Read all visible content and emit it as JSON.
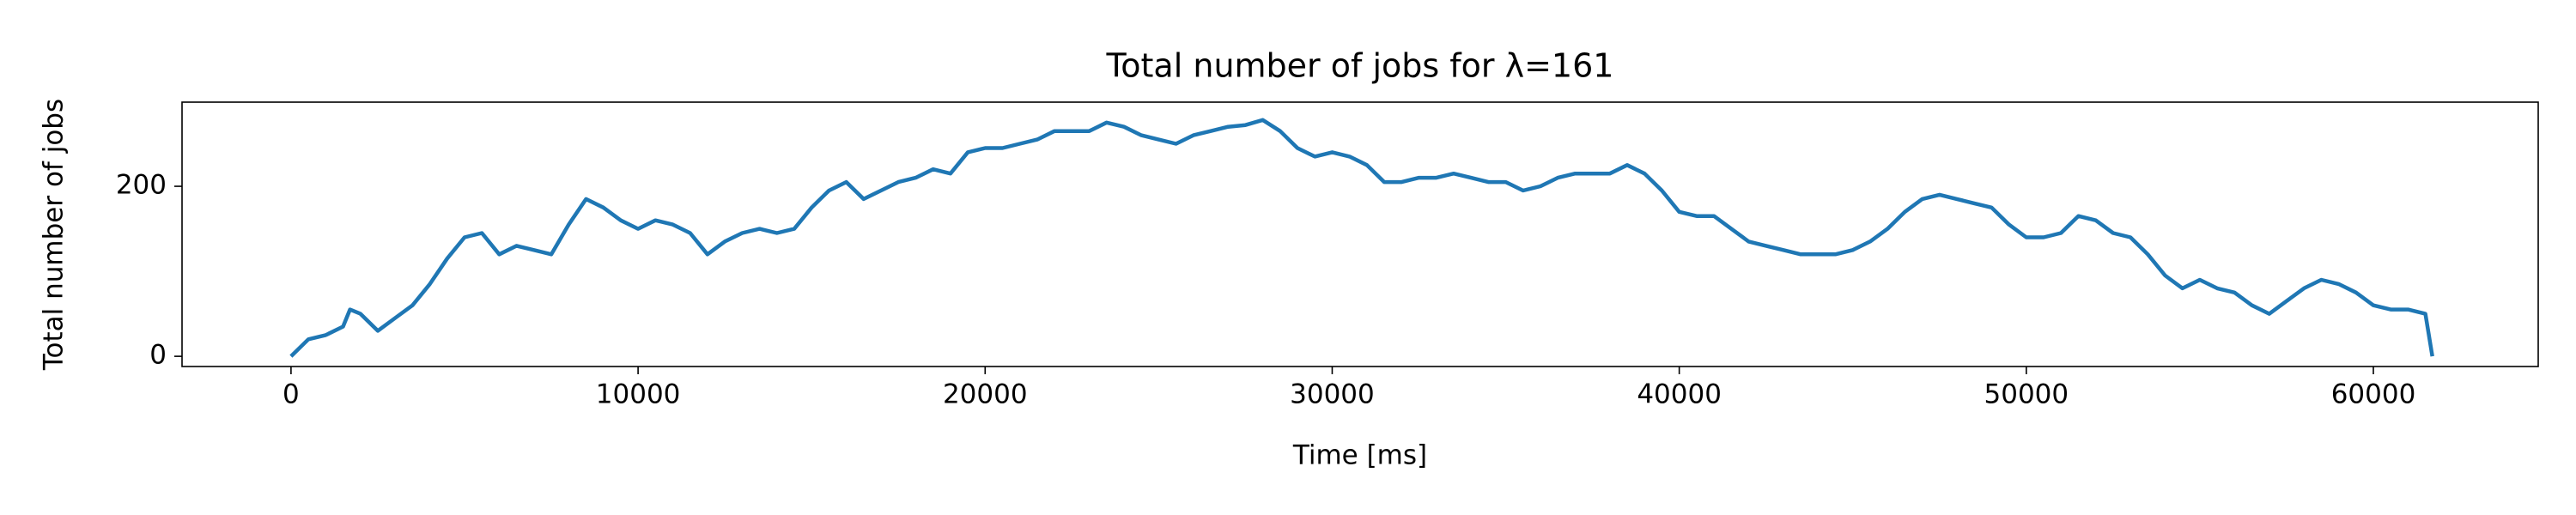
{
  "chart_data": {
    "type": "line",
    "title": "Total number of jobs for λ=161",
    "x_label": "Time [ms]",
    "y_label": "Total number of jobs",
    "color": "#1f77b4",
    "x": [
      0,
      500,
      1000,
      1500,
      1700,
      2000,
      2500,
      3000,
      3500,
      4000,
      4500,
      5000,
      5500,
      6000,
      6500,
      7000,
      7500,
      8000,
      8500,
      9000,
      9500,
      10000,
      10500,
      11000,
      11500,
      12000,
      12500,
      13000,
      13500,
      14000,
      14500,
      15000,
      15500,
      16000,
      16500,
      17000,
      17500,
      18000,
      18500,
      19000,
      19500,
      20000,
      20500,
      21000,
      21500,
      22000,
      22500,
      23000,
      23500,
      24000,
      24500,
      25000,
      25500,
      26000,
      26500,
      27000,
      27500,
      28000,
      28500,
      29000,
      29500,
      30000,
      30500,
      31000,
      31500,
      32000,
      32500,
      33000,
      33500,
      34000,
      34500,
      35000,
      35500,
      36000,
      36500,
      37000,
      37500,
      38000,
      38500,
      39000,
      39500,
      40000,
      40500,
      41000,
      41500,
      42000,
      42500,
      43000,
      43500,
      44000,
      44500,
      45000,
      45500,
      46000,
      46500,
      47000,
      47500,
      48000,
      48500,
      49000,
      49500,
      50000,
      50500,
      51000,
      51500,
      52000,
      52500,
      53000,
      53500,
      54000,
      54500,
      55000,
      55500,
      56000,
      56500,
      57000,
      57500,
      58000,
      58500,
      59000,
      59500,
      60000,
      60500,
      61000,
      61500,
      61700
    ],
    "values": [
      0,
      20,
      25,
      35,
      55,
      50,
      30,
      45,
      60,
      85,
      115,
      140,
      145,
      120,
      130,
      125,
      120,
      155,
      185,
      175,
      160,
      150,
      160,
      155,
      145,
      120,
      135,
      145,
      150,
      145,
      150,
      175,
      195,
      205,
      185,
      195,
      205,
      210,
      220,
      215,
      240,
      245,
      245,
      250,
      255,
      265,
      265,
      265,
      275,
      270,
      260,
      255,
      250,
      260,
      265,
      270,
      272,
      278,
      265,
      245,
      235,
      240,
      235,
      225,
      205,
      205,
      210,
      210,
      215,
      210,
      205,
      205,
      195,
      200,
      210,
      215,
      215,
      215,
      225,
      215,
      195,
      170,
      165,
      165,
      150,
      135,
      130,
      125,
      120,
      120,
      120,
      125,
      135,
      150,
      170,
      185,
      190,
      185,
      180,
      175,
      155,
      140,
      140,
      145,
      165,
      160,
      145,
      140,
      120,
      95,
      80,
      90,
      80,
      75,
      60,
      50,
      65,
      80,
      90,
      85,
      75,
      60,
      55,
      55,
      50,
      0
    ],
    "xlim": [
      -3140,
      64750
    ],
    "ylim": [
      -12,
      299
    ],
    "xticks": [
      0,
      10000,
      20000,
      30000,
      40000,
      50000,
      60000
    ],
    "yticks": [
      0,
      200
    ]
  }
}
